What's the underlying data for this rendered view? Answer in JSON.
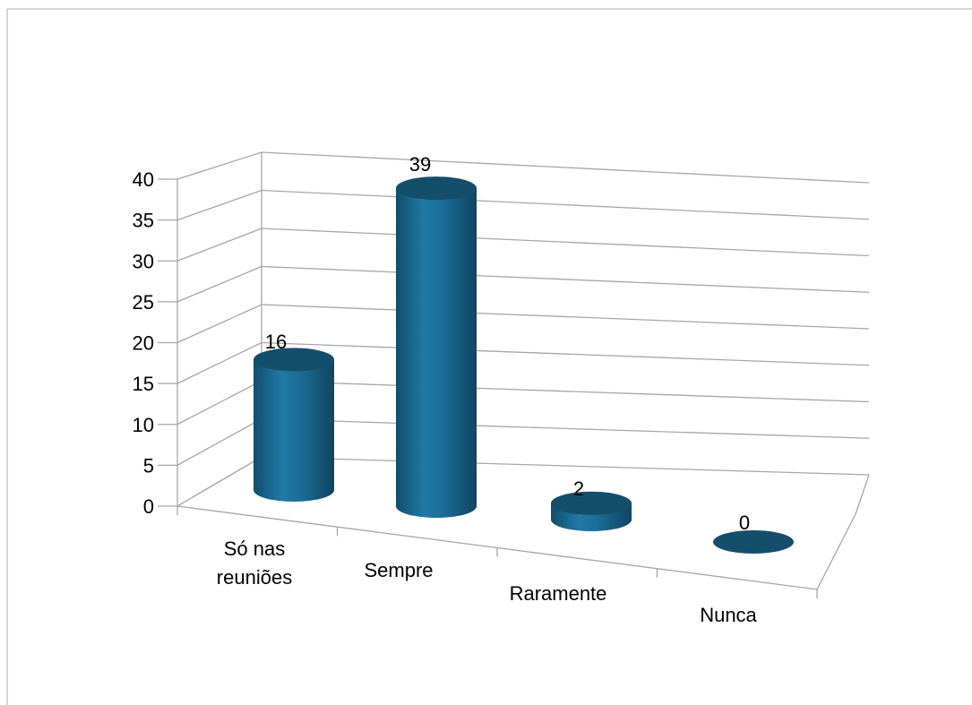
{
  "chart_data": {
    "type": "bar",
    "style": "3d-cylinder",
    "categories": [
      [
        "Só nas",
        "reuniões"
      ],
      [
        "Sempre"
      ],
      [
        "Raramente"
      ],
      [
        "Nunca"
      ]
    ],
    "values": [
      16,
      39,
      2,
      0
    ],
    "ylim": [
      0,
      40
    ],
    "yticks": [
      0,
      5,
      10,
      15,
      20,
      25,
      30,
      35,
      40
    ],
    "title": "",
    "xlabel": "",
    "ylabel": "",
    "grid": true,
    "legend": "none",
    "colors": {
      "bar_body": "#1a6b93",
      "bar_top": "#154e6b",
      "gridline": "#a6a6a6",
      "frame": "#c0c0c0"
    }
  }
}
